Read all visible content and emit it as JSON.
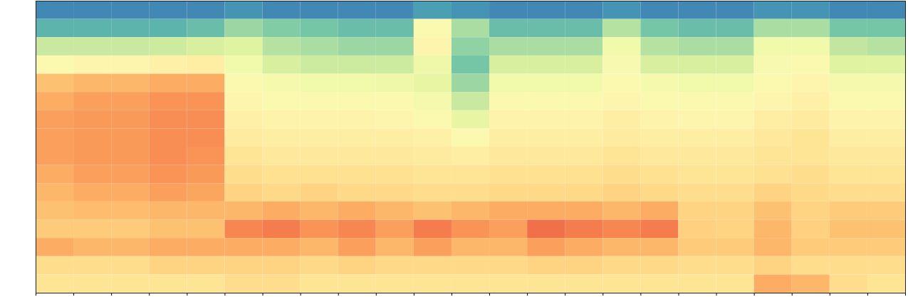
{
  "chart_data": {
    "type": "heatmap",
    "xlim": [
      0,
      23
    ],
    "xticks": [
      0,
      1,
      2,
      3,
      4,
      5,
      6,
      7,
      8,
      9,
      10,
      11,
      12,
      13,
      14,
      15,
      16,
      17,
      18,
      19,
      20,
      21,
      22,
      23
    ],
    "ylim": [
      0,
      16
    ],
    "tick_labels": false,
    "color": "spectral",
    "zlim": [
      0,
      100
    ],
    "cells": [
      [
        10,
        10,
        10,
        10,
        10,
        12,
        10,
        10,
        10,
        10,
        14,
        12,
        10,
        10,
        10,
        12,
        10,
        10,
        10,
        12,
        12,
        10,
        10
      ],
      [
        18,
        18,
        18,
        18,
        20,
        28,
        24,
        22,
        20,
        20,
        50,
        30,
        20,
        20,
        20,
        32,
        22,
        20,
        20,
        30,
        30,
        22,
        22
      ],
      [
        35,
        35,
        35,
        36,
        38,
        40,
        32,
        30,
        28,
        28,
        52,
        26,
        30,
        30,
        30,
        45,
        32,
        30,
        30,
        45,
        45,
        34,
        32
      ],
      [
        50,
        52,
        52,
        54,
        55,
        45,
        38,
        36,
        36,
        36,
        44,
        22,
        38,
        38,
        38,
        48,
        38,
        38,
        38,
        48,
        50,
        40,
        40
      ],
      [
        66,
        68,
        68,
        70,
        70,
        50,
        46,
        45,
        45,
        44,
        42,
        28,
        45,
        45,
        45,
        50,
        46,
        45,
        45,
        50,
        52,
        46,
        46
      ],
      [
        70,
        72,
        72,
        74,
        74,
        52,
        50,
        50,
        50,
        50,
        46,
        35,
        50,
        50,
        50,
        52,
        50,
        50,
        50,
        52,
        54,
        50,
        50
      ],
      [
        72,
        73,
        73,
        75,
        75,
        54,
        53,
        53,
        53,
        52,
        50,
        42,
        53,
        53,
        53,
        55,
        53,
        52,
        52,
        55,
        56,
        53,
        53
      ],
      [
        72,
        73,
        73,
        75,
        75,
        56,
        55,
        55,
        55,
        55,
        54,
        50,
        55,
        55,
        55,
        56,
        55,
        55,
        55,
        57,
        58,
        55,
        55
      ],
      [
        72,
        73,
        73,
        75,
        74,
        58,
        57,
        57,
        57,
        57,
        56,
        55,
        57,
        57,
        57,
        58,
        57,
        57,
        57,
        58,
        58,
        57,
        57
      ],
      [
        70,
        72,
        72,
        74,
        73,
        60,
        59,
        59,
        59,
        59,
        58,
        58,
        59,
        59,
        59,
        60,
        59,
        58,
        58,
        59,
        60,
        58,
        58
      ],
      [
        68,
        70,
        70,
        72,
        71,
        62,
        61,
        62,
        61,
        61,
        60,
        60,
        61,
        61,
        61,
        62,
        61,
        60,
        60,
        62,
        61,
        60,
        60
      ],
      [
        66,
        67,
        67,
        68,
        68,
        68,
        70,
        68,
        70,
        68,
        66,
        68,
        70,
        70,
        70,
        68,
        70,
        62,
        62,
        66,
        62,
        64,
        64
      ],
      [
        64,
        64,
        64,
        66,
        66,
        76,
        78,
        74,
        76,
        72,
        78,
        74,
        72,
        80,
        78,
        76,
        78,
        63,
        62,
        68,
        63,
        66,
        66
      ],
      [
        70,
        68,
        68,
        70,
        70,
        70,
        70,
        68,
        72,
        68,
        72,
        68,
        68,
        72,
        70,
        68,
        68,
        64,
        64,
        68,
        64,
        64,
        64
      ],
      [
        60,
        60,
        60,
        62,
        62,
        62,
        62,
        61,
        62,
        61,
        61,
        61,
        61,
        62,
        62,
        61,
        61,
        60,
        60,
        62,
        60,
        60,
        60
      ],
      [
        58,
        58,
        58,
        58,
        58,
        60,
        60,
        58,
        58,
        58,
        58,
        58,
        58,
        58,
        58,
        58,
        58,
        58,
        58,
        70,
        68,
        60,
        58
      ]
    ]
  }
}
